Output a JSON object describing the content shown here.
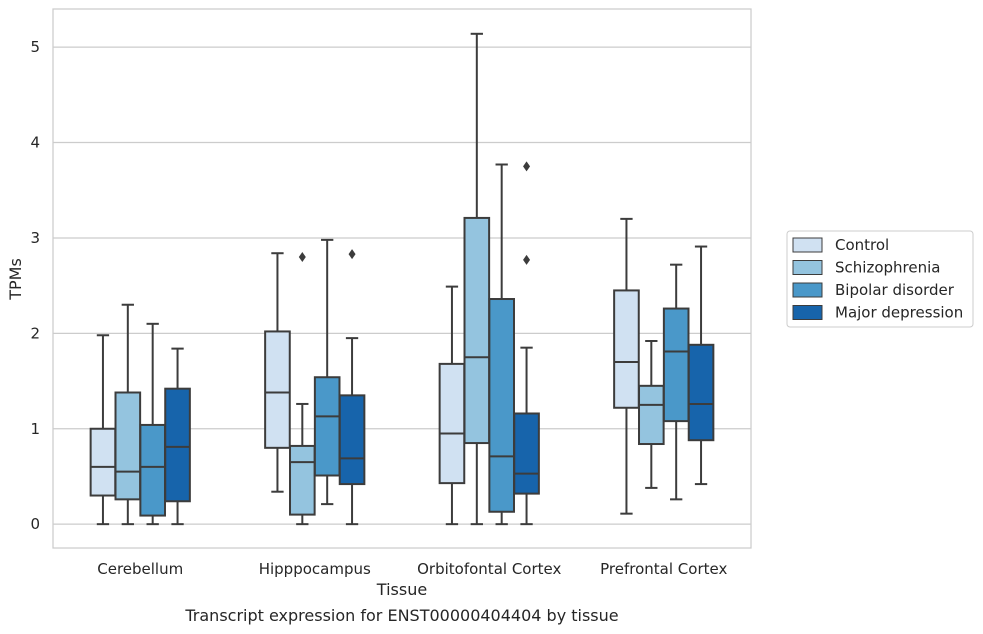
{
  "chart_data": {
    "type": "box",
    "title": "Transcript expression for ENST00000404404 by tissue",
    "xlabel": "Tissue",
    "ylabel": "TPMs",
    "ylim": [
      -0.25,
      5.4
    ],
    "yticks": [
      0,
      1,
      2,
      3,
      4,
      5
    ],
    "grid": true,
    "legend_position": "right",
    "categories": [
      "Cerebellum",
      "Hipppocampus",
      "Orbitofontal Cortex",
      "Prefrontal Cortex"
    ],
    "series": [
      {
        "name": "Control",
        "color": "#d0e1f2",
        "boxes": [
          {
            "whislo": 0,
            "q1": 0.3,
            "med": 0.6,
            "q3": 1.0,
            "whishi": 1.98,
            "fliers": []
          },
          {
            "whislo": 0.34,
            "q1": 0.8,
            "med": 1.38,
            "q3": 2.02,
            "whishi": 2.84,
            "fliers": []
          },
          {
            "whislo": 0,
            "q1": 0.43,
            "med": 0.95,
            "q3": 1.68,
            "whishi": 2.49,
            "fliers": []
          },
          {
            "whislo": 0.11,
            "q1": 1.22,
            "med": 1.7,
            "q3": 2.45,
            "whishi": 3.2,
            "fliers": []
          }
        ]
      },
      {
        "name": "Schizophrenia",
        "color": "#94c4df",
        "boxes": [
          {
            "whislo": 0,
            "q1": 0.26,
            "med": 0.55,
            "q3": 1.38,
            "whishi": 2.3,
            "fliers": []
          },
          {
            "whislo": 0,
            "q1": 0.1,
            "med": 0.65,
            "q3": 0.82,
            "whishi": 1.26,
            "fliers": [
              2.8
            ]
          },
          {
            "whislo": 0,
            "q1": 0.85,
            "med": 1.75,
            "q3": 3.21,
            "whishi": 5.14,
            "fliers": []
          },
          {
            "whislo": 0.38,
            "q1": 0.84,
            "med": 1.25,
            "q3": 1.45,
            "whishi": 1.92,
            "fliers": []
          }
        ]
      },
      {
        "name": "Bipolar disorder",
        "color": "#4a98c9",
        "boxes": [
          {
            "whislo": 0,
            "q1": 0.09,
            "med": 0.6,
            "q3": 1.04,
            "whishi": 2.1,
            "fliers": []
          },
          {
            "whislo": 0.21,
            "q1": 0.51,
            "med": 1.13,
            "q3": 1.54,
            "whishi": 2.98,
            "fliers": []
          },
          {
            "whislo": 0,
            "q1": 0.13,
            "med": 0.71,
            "q3": 2.36,
            "whishi": 3.77,
            "fliers": []
          },
          {
            "whislo": 0.26,
            "q1": 1.08,
            "med": 1.81,
            "q3": 2.26,
            "whishi": 2.72,
            "fliers": []
          }
        ]
      },
      {
        "name": "Major depression",
        "color": "#1764ab",
        "boxes": [
          {
            "whislo": 0,
            "q1": 0.24,
            "med": 0.81,
            "q3": 1.42,
            "whishi": 1.84,
            "fliers": []
          },
          {
            "whislo": 0,
            "q1": 0.42,
            "med": 0.69,
            "q3": 1.35,
            "whishi": 1.95,
            "fliers": [
              2.83
            ]
          },
          {
            "whislo": 0,
            "q1": 0.32,
            "med": 0.53,
            "q3": 1.16,
            "whishi": 1.85,
            "fliers": [
              2.77,
              3.75
            ]
          },
          {
            "whislo": 0.42,
            "q1": 0.88,
            "med": 1.26,
            "q3": 1.88,
            "whishi": 2.91,
            "fliers": []
          }
        ]
      }
    ]
  }
}
